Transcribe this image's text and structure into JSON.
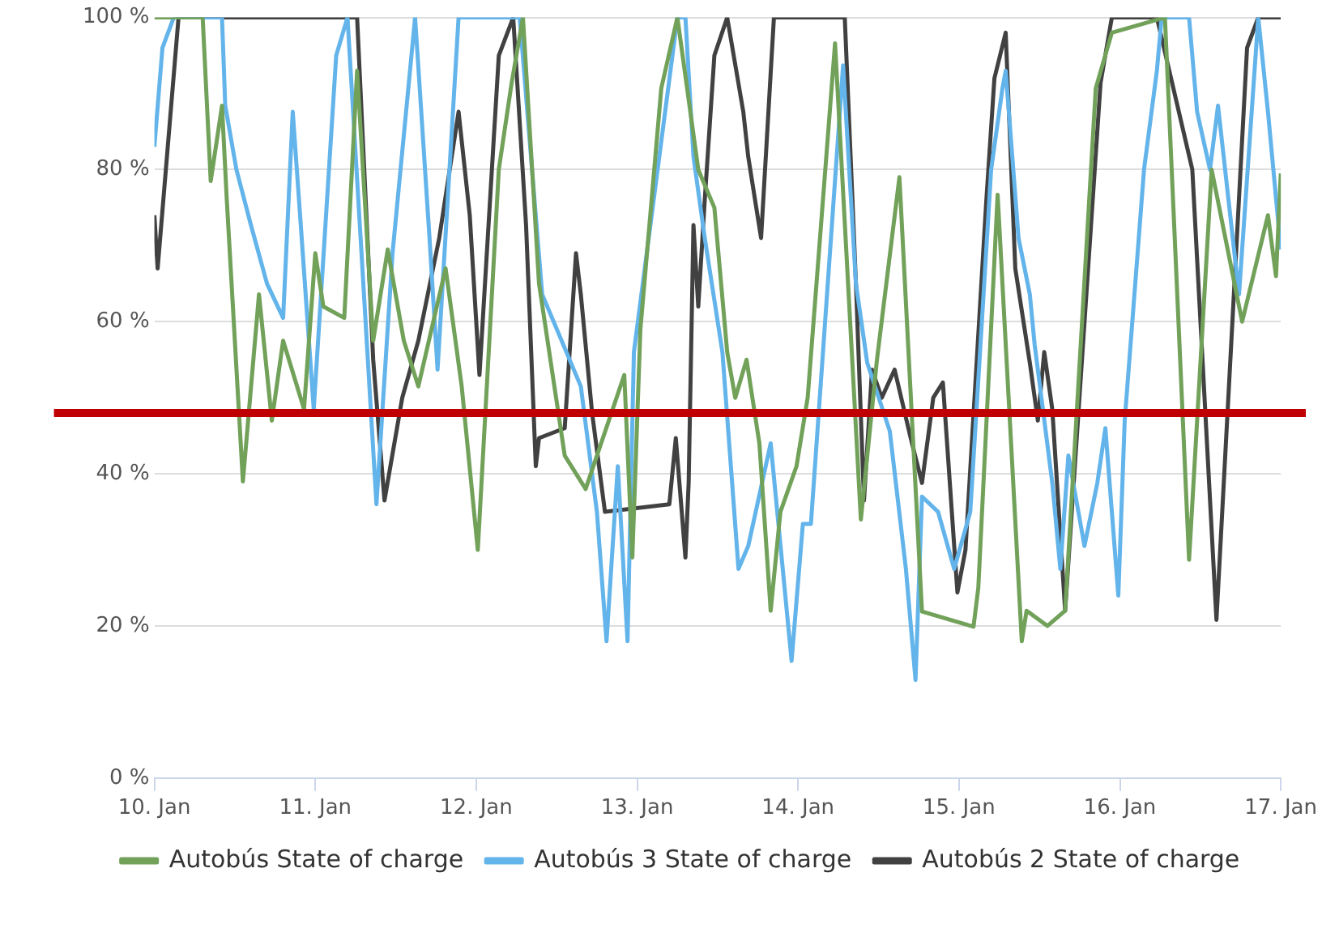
{
  "chart_data": {
    "type": "line",
    "xlim": [
      "--01-10",
      "--01-17"
    ],
    "xticks": [
      {
        "value": "--01-10",
        "label": "10. Jan"
      },
      {
        "value": "--01-11",
        "label": "11. Jan"
      },
      {
        "value": "--01-12",
        "label": "12. Jan"
      },
      {
        "value": "--01-13",
        "label": "13. Jan"
      },
      {
        "value": "--01-14",
        "label": "14. Jan"
      },
      {
        "value": "--01-15",
        "label": "15. Jan"
      },
      {
        "value": "--01-16",
        "label": "16. Jan"
      },
      {
        "value": "--01-17",
        "label": "17. Jan"
      }
    ],
    "ylim": [
      0,
      100
    ],
    "yticks": [
      {
        "value": 0,
        "label": "0 %"
      },
      {
        "value": 20,
        "label": "20 %"
      },
      {
        "value": 40,
        "label": "40 %"
      },
      {
        "value": 60,
        "label": "60 %"
      },
      {
        "value": 80,
        "label": "80 %"
      },
      {
        "value": 100,
        "label": "100 %"
      }
    ],
    "grid": "y",
    "legend": "bottom",
    "marker": "none",
    "line_style": "solid",
    "ref_lines": [
      {
        "axis": "y",
        "value": 48,
        "color": "#c00000"
      }
    ],
    "series": [
      {
        "name": "Autobús State of charge",
        "color": "#72a15a",
        "x": [
          "--01-10T00:00",
          "--01-10T07:12",
          "--01-10T08:24",
          "--01-10T10:05",
          "--01-10T10:48",
          "--01-10T13:12",
          "--01-10T15:36",
          "--01-10T17:31",
          "--01-10T19:12",
          "--01-10T22:19",
          "--01-11T00:00",
          "--01-11T01:12",
          "--01-11T04:19",
          "--01-11T06:14",
          "--01-11T08:38",
          "--01-11T10:48",
          "--01-11T13:12",
          "--01-11T15:22",
          "--01-11T19:26",
          "--01-11T21:50",
          "--01-12T00:14",
          "--01-12T03:22",
          "--01-12T05:17",
          "--01-12T06:58",
          "--01-12T09:22",
          "--01-12T13:12",
          "--01-12T16:19",
          "--01-12T22:05",
          "--01-12T23:17",
          "--01-13T00:29",
          "--01-13T03:36",
          "--01-13T06:00",
          "--01-13T09:07",
          "--01-13T11:31",
          "--01-13T13:26",
          "--01-13T14:38",
          "--01-13T16:19",
          "--01-13T18:14",
          "--01-13T19:55",
          "--01-13T21:22",
          "--01-13T23:46",
          "--01-14T01:26",
          "--01-14T05:31",
          "--01-14T09:22",
          "--01-14T11:46",
          "--01-14T15:07",
          "--01-14T18:29",
          "--01-15T02:10",
          "--01-15T02:53",
          "--01-15T05:46",
          "--01-15T09:22",
          "--01-15T10:05",
          "--01-15T13:12",
          "--01-15T15:50",
          "--01-15T20:24",
          "--01-15T22:48",
          "--01-16T06:43",
          "--01-16T10:19",
          "--01-16T13:41",
          "--01-16T18:14",
          "--01-16T22:05",
          "--01-16T23:17",
          "--01-17T00:00"
        ],
        "values": [
          100,
          100,
          78.5,
          88.4,
          76,
          39,
          63.6,
          47,
          57.5,
          48.5,
          69,
          62,
          60.5,
          93,
          57.5,
          69.5,
          57.5,
          51.5,
          67,
          51.5,
          30,
          80,
          91.4,
          100,
          65,
          42.4,
          38,
          53,
          29,
          59,
          90.7,
          100,
          80,
          75,
          56,
          50,
          55,
          44,
          22,
          35,
          41,
          50,
          96.6,
          34,
          55,
          79,
          21.9,
          19.9,
          25,
          76.7,
          18,
          22,
          20,
          22,
          90.7,
          98,
          100,
          28.7,
          80,
          60,
          74,
          66,
          79.5
        ]
      },
      {
        "name": "Autobús 3 State of charge",
        "color": "#63b4ea",
        "x": [
          "--01-10T00:00",
          "--01-10T01:12",
          "--01-10T02:53",
          "--01-10T10:05",
          "--01-10T10:34",
          "--01-10T12:14",
          "--01-10T14:24",
          "--01-10T16:48",
          "--01-10T19:12",
          "--01-10T20:38",
          "--01-10T21:50",
          "--01-10T23:46",
          "--01-11T03:07",
          "--01-11T04:48",
          "--01-11T09:07",
          "--01-11T11:31",
          "--01-11T14:53",
          "--01-11T17:02",
          "--01-11T18:14",
          "--01-11T21:22",
          "--01-12T06:29",
          "--01-12T09:50",
          "--01-12T15:36",
          "--01-12T18:00",
          "--01-12T19:26",
          "--01-12T21:07",
          "--01-12T22:34",
          "--01-12T23:31",
          "--01-13T06:00",
          "--01-13T07:12",
          "--01-13T08:24",
          "--01-13T10:05",
          "--01-13T12:43",
          "--01-13T15:07",
          "--01-13T16:34",
          "--01-13T19:55",
          "--01-13T23:02",
          "--01-14T00:43",
          "--01-14T01:55",
          "--01-14T06:43",
          "--01-14T08:38",
          "--01-14T10:19",
          "--01-14T13:41",
          "--01-14T16:05",
          "--01-14T17:31",
          "--01-14T18:29",
          "--01-14T20:53",
          "--01-14T23:17",
          "--01-15T01:41",
          "--01-15T04:48",
          "--01-15T06:29",
          "--01-15T06:58",
          "--01-15T08:53",
          "--01-15T10:34",
          "--01-15T11:17",
          "--01-15T13:55",
          "--01-15T15:07",
          "--01-15T16:19",
          "--01-15T18:43",
          "--01-15T20:38",
          "--01-15T21:50",
          "--01-15T23:46",
          "--01-16T00:43",
          "--01-16T03:36",
          "--01-16T05:31",
          "--01-16T06:14",
          "--01-16T10:19",
          "--01-16T11:31",
          "--01-16T13:26",
          "--01-16T14:38",
          "--01-16T17:46",
          "--01-16T20:38",
          "--01-16T22:05",
          "--01-17T00:00"
        ],
        "values": [
          83,
          96,
          100,
          100,
          88.4,
          80,
          72.7,
          65,
          60.5,
          87.6,
          72.7,
          48.5,
          95,
          100,
          36,
          69,
          100,
          71,
          53.7,
          100,
          100,
          63.6,
          51.5,
          35,
          18,
          41,
          18,
          56,
          100,
          100,
          81.7,
          71,
          56,
          27.5,
          30.5,
          44,
          15.4,
          33.4,
          33.4,
          93.7,
          65,
          54.6,
          45.6,
          27.5,
          12.9,
          37,
          35,
          27.5,
          35,
          80,
          90.7,
          93,
          71,
          63.6,
          57,
          38.8,
          27.5,
          42.4,
          30.5,
          38.8,
          46,
          24,
          47,
          80,
          93,
          100,
          100,
          87.6,
          80,
          88.4,
          63.6,
          100,
          87.6,
          69.5
        ]
      },
      {
        "name": "Autobús 2 State of charge",
        "color": "#414141",
        "x": [
          "--01-10T00:00",
          "--01-10T00:29",
          "--01-10T03:36",
          "--01-11T06:14",
          "--01-11T08:38",
          "--01-11T10:19",
          "--01-11T12:58",
          "--01-11T15:22",
          "--01-11T18:29",
          "--01-11T21:22",
          "--01-11T23:02",
          "--01-12T00:29",
          "--01-12T03:22",
          "--01-12T05:31",
          "--01-12T07:26",
          "--01-12T08:53",
          "--01-12T09:22",
          "--01-12T13:12",
          "--01-12T14:53",
          "--01-12T15:36",
          "--01-12T17:17",
          "--01-12T19:12",
          "--01-13T04:48",
          "--01-13T05:46",
          "--01-13T07:12",
          "--01-13T07:41",
          "--01-13T08:24",
          "--01-13T09:07",
          "--01-13T10:05",
          "--01-13T11:31",
          "--01-13T13:26",
          "--01-13T15:50",
          "--01-13T16:34",
          "--01-13T18:29",
          "--01-13T20:24",
          "--01-14T06:58",
          "--01-14T08:38",
          "--01-14T09:50",
          "--01-14T11:02",
          "--01-14T12:29",
          "--01-14T14:24",
          "--01-14T16:48",
          "--01-14T18:29",
          "--01-14T20:10",
          "--01-14T21:36",
          "--01-14T23:46",
          "--01-15T00:58",
          "--01-15T04:05",
          "--01-15T05:17",
          "--01-15T06:58",
          "--01-15T08:24",
          "--01-15T10:34",
          "--01-15T11:46",
          "--01-15T12:43",
          "--01-15T13:55",
          "--01-15T15:50",
          "--01-15T21:07",
          "--01-15T22:48",
          "--01-16T05:31",
          "--01-16T10:48",
          "--01-16T14:24",
          "--01-16T18:58",
          "--01-16T20:38",
          "--01-17T00:00"
        ],
        "values": [
          74,
          67,
          100,
          100,
          55,
          36.5,
          50,
          57.5,
          71,
          87.6,
          74,
          53,
          95,
          100,
          72.7,
          41,
          44.7,
          46,
          69,
          63.6,
          48,
          35,
          36,
          44.7,
          29,
          38.8,
          72.7,
          62,
          76,
          95,
          100,
          87.6,
          81.7,
          71,
          100,
          100,
          65,
          36.5,
          53.7,
          50,
          53.7,
          44.7,
          38.8,
          50,
          52,
          24.4,
          30,
          76,
          92,
          98,
          67,
          54.6,
          47,
          56,
          48.5,
          22,
          91.4,
          100,
          100,
          80,
          20.8,
          96,
          100,
          100
        ]
      }
    ]
  }
}
